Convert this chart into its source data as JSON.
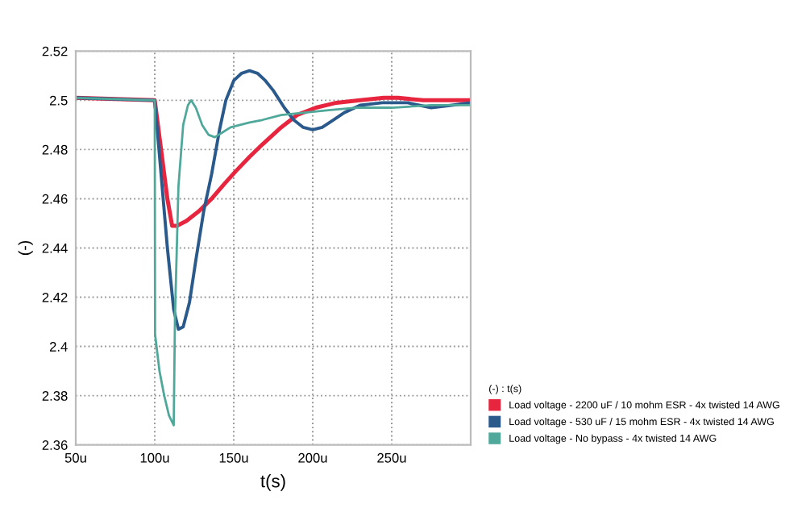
{
  "chart_data": {
    "type": "line",
    "xlabel": "t(s)",
    "ylabel": "(-)",
    "legend_title": "(-) : t(s)",
    "legend": "right",
    "grid": true,
    "line_style": "solid",
    "marker": "none",
    "xlim": [
      50,
      300
    ],
    "xticks": [
      {
        "value": 50,
        "label": "50u"
      },
      {
        "value": 100,
        "label": "100u"
      },
      {
        "value": 150,
        "label": "150u"
      },
      {
        "value": 200,
        "label": "200u"
      },
      {
        "value": 250,
        "label": "250u"
      }
    ],
    "ylim": [
      2.36,
      2.52
    ],
    "yticks": [
      2.36,
      2.38,
      2.4,
      2.42,
      2.44,
      2.46,
      2.48,
      2.5,
      2.52
    ],
    "series": [
      {
        "name": "Load voltage - 2200 uF / 10 mohm ESR - 4x twisted 14 AWG",
        "color": "#e8253f",
        "x": [
          50,
          100,
          104,
          108,
          111,
          114,
          120,
          128,
          136,
          144,
          151,
          160,
          168,
          180,
          190,
          202,
          215,
          230,
          245,
          254,
          270,
          285,
          300
        ],
        "values": [
          2.501,
          2.5,
          2.48,
          2.46,
          2.449,
          2.449,
          2.451,
          2.455,
          2.46,
          2.466,
          2.471,
          2.477,
          2.482,
          2.489,
          2.494,
          2.497,
          2.499,
          2.5,
          2.501,
          2.501,
          2.5,
          2.5,
          2.5
        ]
      },
      {
        "name": "Load voltage - 530 uF / 15 mohm ESR - 4x twisted 14 AWG",
        "color": "#2a5a8c",
        "x": [
          50,
          100,
          104,
          108,
          112,
          115,
          118,
          122,
          126,
          131,
          136,
          141,
          145,
          150,
          155,
          160,
          165,
          170,
          175,
          182,
          188,
          194,
          200,
          206,
          213,
          220,
          230,
          244,
          260,
          275,
          288,
          300
        ],
        "values": [
          2.501,
          2.5,
          2.47,
          2.44,
          2.415,
          2.407,
          2.408,
          2.418,
          2.435,
          2.455,
          2.47,
          2.488,
          2.5,
          2.508,
          2.511,
          2.512,
          2.511,
          2.508,
          2.504,
          2.497,
          2.492,
          2.489,
          2.488,
          2.489,
          2.492,
          2.495,
          2.498,
          2.499,
          2.499,
          2.497,
          2.498,
          2.499
        ]
      },
      {
        "name": "Load voltage - No bypass - 4x twisted 14 AWG",
        "color": "#4fa89a",
        "x": [
          50,
          100,
          100.2,
          103,
          106,
          109,
          112,
          112.8,
          115,
          118,
          121,
          123,
          126,
          130,
          134,
          138,
          143,
          148,
          154,
          160,
          168,
          180,
          195,
          210,
          227,
          250,
          275,
          300
        ],
        "values": [
          2.501,
          2.5,
          2.405,
          2.39,
          2.38,
          2.372,
          2.368,
          2.412,
          2.465,
          2.49,
          2.498,
          2.5,
          2.497,
          2.49,
          2.486,
          2.485,
          2.487,
          2.489,
          2.49,
          2.491,
          2.492,
          2.494,
          2.495,
          2.496,
          2.497,
          2.497,
          2.498,
          2.498
        ]
      }
    ]
  }
}
